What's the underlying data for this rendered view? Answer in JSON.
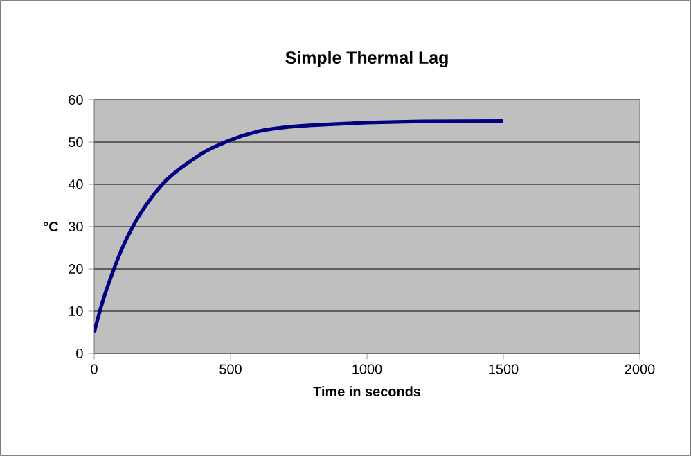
{
  "chart_data": {
    "type": "line",
    "title": "Simple Thermal Lag",
    "xlabel": "Time in seconds",
    "ylabel": "°C",
    "x": [
      0,
      25,
      50,
      100,
      150,
      200,
      250,
      300,
      400,
      500,
      600,
      700,
      800,
      1000,
      1200,
      1500
    ],
    "series": [
      {
        "color": "#000080",
        "values": [
          5,
          11,
          16,
          24.5,
          31,
          36,
          40,
          43,
          47.5,
          50.5,
          52.5,
          53.5,
          54,
          54.6,
          54.9,
          55
        ]
      }
    ],
    "xlim": [
      0,
      2000
    ],
    "ylim": [
      0,
      60
    ],
    "xticks": [
      0,
      500,
      1000,
      1500,
      2000
    ],
    "yticks": [
      0,
      10,
      20,
      30,
      40,
      50,
      60
    ],
    "grid": "y",
    "marker": "none",
    "line_style": "solid"
  }
}
